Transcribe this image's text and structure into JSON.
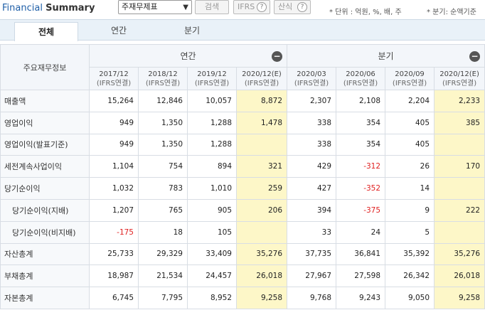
{
  "header": {
    "title_part1": "Financial",
    "title_part2": "Summary",
    "select_value": "주재무제표",
    "search_label": "검색",
    "ifrs_label": "IFRS",
    "calc_label": "산식",
    "help_glyph": "?",
    "unit_note": "* 단위 : 억원, %, 배, 주",
    "period_note": "* 분기: 순액기준"
  },
  "tabs": [
    {
      "label": "전체"
    },
    {
      "label": "연간"
    },
    {
      "label": "분기"
    }
  ],
  "table": {
    "corner_label": "주요재무정보",
    "annual_label": "연간",
    "quarter_label": "분기",
    "collapse_glyph": "−",
    "columns": [
      {
        "period": "2017/12",
        "basis": "(IFRS연결)"
      },
      {
        "period": "2018/12",
        "basis": "(IFRS연결)"
      },
      {
        "period": "2019/12",
        "basis": "(IFRS연결)"
      },
      {
        "period": "2020/12(E)",
        "basis": "(IFRS연결)"
      },
      {
        "period": "2020/03",
        "basis": "(IFRS연결)"
      },
      {
        "period": "2020/06",
        "basis": "(IFRS연결)"
      },
      {
        "period": "2020/09",
        "basis": "(IFRS연결)"
      },
      {
        "period": "2020/12(E)",
        "basis": "(IFRS연결)"
      }
    ],
    "rows": [
      {
        "label": "매출액",
        "values": [
          "15,264",
          "12,846",
          "10,057",
          "8,872",
          "2,307",
          "2,108",
          "2,204",
          "2,233"
        ]
      },
      {
        "label": "영업이익",
        "values": [
          "949",
          "1,350",
          "1,288",
          "1,478",
          "338",
          "354",
          "405",
          "385"
        ]
      },
      {
        "label": "영업이익(발표기준)",
        "values": [
          "949",
          "1,350",
          "1,288",
          "",
          "338",
          "354",
          "405",
          ""
        ]
      },
      {
        "label": "세전계속사업이익",
        "values": [
          "1,104",
          "754",
          "894",
          "321",
          "429",
          "-312",
          "26",
          "170"
        ]
      },
      {
        "label": "당기순이익",
        "values": [
          "1,032",
          "783",
          "1,010",
          "259",
          "427",
          "-352",
          "14",
          ""
        ]
      },
      {
        "label": "당기순이익(지배)",
        "values": [
          "1,207",
          "765",
          "905",
          "206",
          "394",
          "-375",
          "9",
          "222"
        ]
      },
      {
        "label": "당기순이익(비지배)",
        "values": [
          "-175",
          "18",
          "105",
          "",
          "33",
          "24",
          "5",
          ""
        ]
      },
      {
        "label": "자산총계",
        "values": [
          "25,733",
          "29,329",
          "33,409",
          "35,276",
          "37,735",
          "36,841",
          "35,392",
          "35,276"
        ]
      },
      {
        "label": "부채총계",
        "values": [
          "18,987",
          "21,534",
          "24,457",
          "26,018",
          "27,967",
          "27,598",
          "26,342",
          "26,018"
        ]
      },
      {
        "label": "자본총계",
        "values": [
          "6,745",
          "7,795",
          "8,952",
          "9,258",
          "9,768",
          "9,243",
          "9,050",
          "9,258"
        ]
      }
    ]
  }
}
